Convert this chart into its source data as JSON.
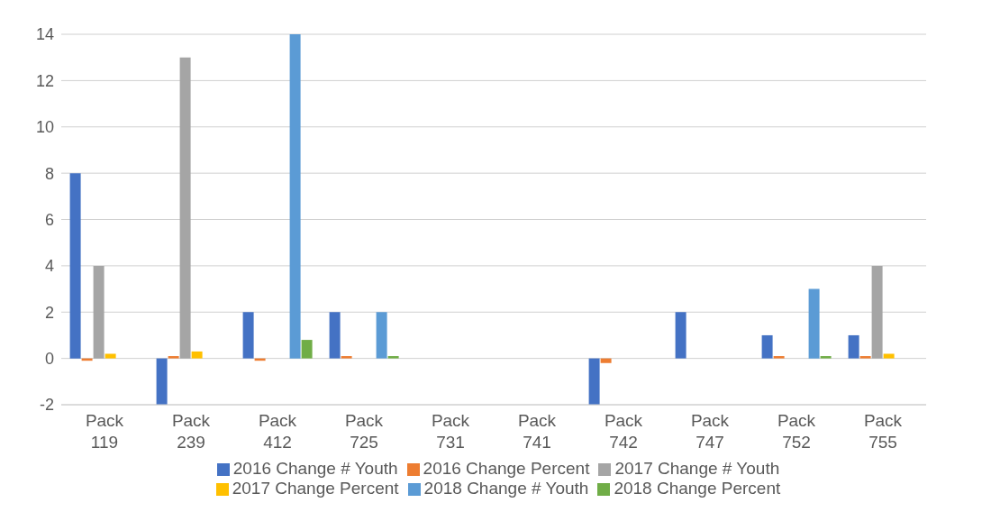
{
  "chart_data": {
    "type": "bar",
    "categories": [
      "Pack 119",
      "Pack 239",
      "Pack 412",
      "Pack 725",
      "Pack 731",
      "Pack 741",
      "Pack 742",
      "Pack 747",
      "Pack 752",
      "Pack 755"
    ],
    "series": [
      {
        "name": "2016 Change # Youth",
        "color": "#4472c4",
        "values": [
          8,
          -2,
          2,
          2,
          0,
          0,
          -2,
          2,
          1,
          1
        ]
      },
      {
        "name": "2016 Change Percent",
        "color": "#ed7d31",
        "values": [
          -0.1,
          0.1,
          -0.1,
          0.1,
          0,
          0,
          -0.2,
          0,
          0.1,
          0.1
        ]
      },
      {
        "name": "2017 Change # Youth",
        "color": "#a5a5a5",
        "values": [
          4,
          13,
          0,
          0,
          0,
          0,
          0,
          0,
          0,
          4
        ]
      },
      {
        "name": "2017 Change Percent",
        "color": "#ffc000",
        "values": [
          0.2,
          0.3,
          0,
          0,
          0,
          0,
          null,
          null,
          0,
          0.2
        ]
      },
      {
        "name": "2018 Change # Youth",
        "color": "#5b9bd5",
        "values": [
          0,
          0,
          14,
          2,
          null,
          0,
          null,
          null,
          3,
          0
        ]
      },
      {
        "name": "2018 Change Percent",
        "color": "#70ad47",
        "values": [
          0,
          0,
          0.8,
          0.1,
          null,
          null,
          null,
          null,
          0.1,
          0
        ]
      }
    ],
    "ylim": [
      -2,
      14
    ],
    "yticks": [
      -2,
      0,
      2,
      4,
      6,
      8,
      10,
      12,
      14
    ],
    "grid": "y",
    "legend": "bottom"
  }
}
